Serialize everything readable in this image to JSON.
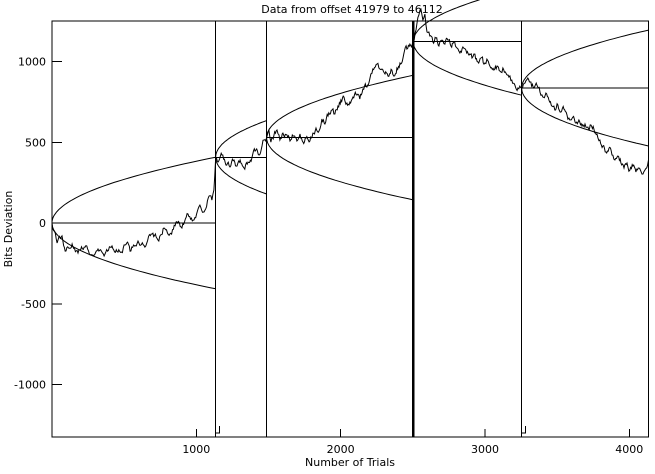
{
  "chart_data": {
    "type": "line",
    "title": "Data from offset 41979 to 46112",
    "xlabel": "Number of Trials",
    "ylabel": "Bits Deviation",
    "xlim": [
      0,
      4133
    ],
    "ylim": [
      -1325,
      1251
    ],
    "xticks": [
      1000,
      2000,
      3000,
      4000
    ],
    "yticks": [
      -1000,
      -500,
      0,
      500,
      1000
    ],
    "grid": false,
    "legend": null,
    "line_color": "#000000",
    "background_color": "#ffffff",
    "envelope_coefficient": 12.1,
    "segments": [
      {
        "start_trial": 0,
        "start_value": 0,
        "end_trial": 1134
      },
      {
        "start_trial": 1134,
        "start_value": 407,
        "end_trial": 1487
      },
      {
        "start_trial": 1487,
        "start_value": 529,
        "end_trial": 2503
      },
      {
        "start_trial": 2503,
        "start_value": 1123,
        "end_trial": 3254
      },
      {
        "start_trial": 3254,
        "start_value": 836,
        "end_trial": 4133
      }
    ],
    "boundaries": {
      "trials": [
        1134,
        1487,
        2503,
        3254
      ],
      "thick": [
        false,
        false,
        true,
        false
      ],
      "hook": [
        true,
        false,
        false,
        true
      ]
    },
    "walk_waypoints": [
      [
        0,
        0
      ],
      [
        35,
        -124
      ],
      [
        69,
        -80
      ],
      [
        97,
        -173
      ],
      [
        139,
        -130
      ],
      [
        180,
        -186
      ],
      [
        229,
        -149
      ],
      [
        277,
        -198
      ],
      [
        319,
        -161
      ],
      [
        367,
        -192
      ],
      [
        416,
        -142
      ],
      [
        457,
        -180
      ],
      [
        506,
        -136
      ],
      [
        547,
        -173
      ],
      [
        596,
        -111
      ],
      [
        644,
        -149
      ],
      [
        693,
        -68
      ],
      [
        734,
        -105
      ],
      [
        776,
        -31
      ],
      [
        817,
        -68
      ],
      [
        859,
        6
      ],
      [
        900,
        -31
      ],
      [
        942,
        56
      ],
      [
        984,
        19
      ],
      [
        1025,
        111
      ],
      [
        1060,
        80
      ],
      [
        1088,
        167
      ],
      [
        1108,
        142
      ],
      [
        1122,
        204
      ],
      [
        1128,
        297
      ],
      [
        1134,
        407
      ],
      [
        1150,
        378
      ],
      [
        1178,
        421
      ],
      [
        1205,
        359
      ],
      [
        1233,
        347
      ],
      [
        1261,
        390
      ],
      [
        1282,
        353
      ],
      [
        1309,
        372
      ],
      [
        1330,
        341
      ],
      [
        1358,
        378
      ],
      [
        1385,
        403
      ],
      [
        1413,
        452
      ],
      [
        1434,
        421
      ],
      [
        1455,
        477
      ],
      [
        1469,
        514
      ],
      [
        1487,
        529
      ],
      [
        1503,
        576
      ],
      [
        1517,
        501
      ],
      [
        1538,
        545
      ],
      [
        1559,
        576
      ],
      [
        1579,
        514
      ],
      [
        1600,
        557
      ],
      [
        1628,
        545
      ],
      [
        1649,
        508
      ],
      [
        1670,
        539
      ],
      [
        1697,
        508
      ],
      [
        1718,
        551
      ],
      [
        1739,
        501
      ],
      [
        1760,
        526
      ],
      [
        1787,
        508
      ],
      [
        1808,
        557
      ],
      [
        1829,
        588
      ],
      [
        1850,
        570
      ],
      [
        1870,
        644
      ],
      [
        1891,
        613
      ],
      [
        1912,
        663
      ],
      [
        1940,
        700
      ],
      [
        1960,
        675
      ],
      [
        1981,
        724
      ],
      [
        2002,
        762
      ],
      [
        2023,
        780
      ],
      [
        2043,
        743
      ],
      [
        2064,
        749
      ],
      [
        2085,
        780
      ],
      [
        2113,
        793
      ],
      [
        2133,
        768
      ],
      [
        2154,
        830
      ],
      [
        2182,
        842
      ],
      [
        2203,
        898
      ],
      [
        2223,
        954
      ],
      [
        2251,
        984
      ],
      [
        2265,
        960
      ],
      [
        2286,
        954
      ],
      [
        2307,
        923
      ],
      [
        2328,
        910
      ],
      [
        2355,
        947
      ],
      [
        2369,
        910
      ],
      [
        2390,
        960
      ],
      [
        2411,
        991
      ],
      [
        2432,
        1022
      ],
      [
        2459,
        1077
      ],
      [
        2480,
        1108
      ],
      [
        2503,
        1123
      ],
      [
        2522,
        1195
      ],
      [
        2542,
        1288
      ],
      [
        2556,
        1325
      ],
      [
        2570,
        1257
      ],
      [
        2584,
        1294
      ],
      [
        2598,
        1183
      ],
      [
        2618,
        1158
      ],
      [
        2639,
        1121
      ],
      [
        2660,
        1146
      ],
      [
        2681,
        1096
      ],
      [
        2702,
        1133
      ],
      [
        2722,
        1108
      ],
      [
        2743,
        1133
      ],
      [
        2764,
        1096
      ],
      [
        2785,
        1121
      ],
      [
        2806,
        1084
      ],
      [
        2826,
        1053
      ],
      [
        2847,
        1090
      ],
      [
        2868,
        1071
      ],
      [
        2889,
        1040
      ],
      [
        2910,
        1022
      ],
      [
        2930,
        1046
      ],
      [
        2951,
        997
      ],
      [
        2972,
        1022
      ],
      [
        2993,
        984
      ],
      [
        3013,
        1015
      ],
      [
        3034,
        972
      ],
      [
        3062,
        947
      ],
      [
        3083,
        972
      ],
      [
        3104,
        941
      ],
      [
        3124,
        960
      ],
      [
        3145,
        929
      ],
      [
        3166,
        904
      ],
      [
        3186,
        885
      ],
      [
        3207,
        854
      ],
      [
        3228,
        836
      ],
      [
        3254,
        836
      ],
      [
        3277,
        867
      ],
      [
        3297,
        898
      ],
      [
        3318,
        873
      ],
      [
        3339,
        836
      ],
      [
        3360,
        854
      ],
      [
        3381,
        811
      ],
      [
        3401,
        780
      ],
      [
        3422,
        805
      ],
      [
        3443,
        762
      ],
      [
        3464,
        724
      ],
      [
        3484,
        700
      ],
      [
        3505,
        731
      ],
      [
        3526,
        687
      ],
      [
        3547,
        706
      ],
      [
        3568,
        669
      ],
      [
        3588,
        638
      ],
      [
        3609,
        656
      ],
      [
        3630,
        619
      ],
      [
        3651,
        638
      ],
      [
        3672,
        600
      ],
      [
        3693,
        613
      ],
      [
        3713,
        594
      ],
      [
        3734,
        607
      ],
      [
        3755,
        582
      ],
      [
        3776,
        551
      ],
      [
        3796,
        514
      ],
      [
        3817,
        477
      ],
      [
        3838,
        440
      ],
      [
        3859,
        464
      ],
      [
        3880,
        421
      ],
      [
        3900,
        390
      ],
      [
        3921,
        415
      ],
      [
        3942,
        372
      ],
      [
        3963,
        341
      ],
      [
        3984,
        372
      ],
      [
        4004,
        328
      ],
      [
        4025,
        353
      ],
      [
        4046,
        316
      ],
      [
        4067,
        341
      ],
      [
        4088,
        303
      ],
      [
        4108,
        328
      ],
      [
        4133,
        390
      ]
    ]
  }
}
